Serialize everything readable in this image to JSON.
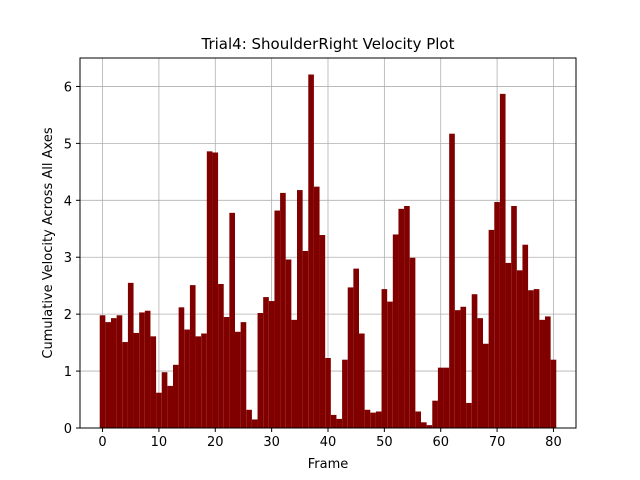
{
  "chart_data": {
    "type": "bar",
    "title": "Trial4: ShoulderRight Velocity Plot",
    "xlabel": "Frame",
    "ylabel": "Cumulative Velocity Across All Axes",
    "xlim": [
      -4.0,
      84.0
    ],
    "ylim": [
      0,
      6.5
    ],
    "xticks": [
      0,
      10,
      20,
      30,
      40,
      50,
      60,
      70,
      80
    ],
    "yticks": [
      0,
      1,
      2,
      3,
      4,
      5,
      6
    ],
    "grid": true,
    "bar_color": "#800000",
    "x": [
      0,
      1,
      2,
      3,
      4,
      5,
      6,
      7,
      8,
      9,
      10,
      11,
      12,
      13,
      14,
      15,
      16,
      17,
      18,
      19,
      20,
      21,
      22,
      23,
      24,
      25,
      26,
      27,
      28,
      29,
      30,
      31,
      32,
      33,
      34,
      35,
      36,
      37,
      38,
      39,
      40,
      41,
      42,
      43,
      44,
      45,
      46,
      47,
      48,
      49,
      50,
      51,
      52,
      53,
      54,
      55,
      56,
      57,
      58,
      59,
      60,
      61,
      62,
      63,
      64,
      65,
      66,
      67,
      68,
      69,
      70,
      71,
      72,
      73,
      74,
      75,
      76,
      77,
      78,
      79,
      80
    ],
    "values": [
      1.98,
      1.86,
      1.93,
      1.98,
      1.51,
      2.55,
      1.67,
      2.03,
      2.06,
      1.61,
      0.62,
      0.98,
      0.74,
      1.11,
      2.12,
      1.73,
      2.51,
      1.61,
      1.66,
      4.86,
      4.84,
      2.53,
      1.95,
      3.78,
      1.69,
      1.86,
      0.32,
      0.15,
      2.02,
      2.3,
      2.23,
      3.82,
      4.13,
      2.96,
      1.9,
      4.18,
      3.11,
      6.21,
      4.24,
      3.39,
      1.23,
      0.23,
      0.16,
      1.2,
      2.47,
      2.8,
      1.66,
      0.32,
      0.27,
      0.29,
      2.44,
      2.22,
      3.4,
      3.85,
      3.9,
      2.99,
      0.29,
      0.1,
      0.05,
      0.48,
      1.06,
      1.06,
      5.17,
      2.07,
      2.13,
      0.44,
      2.35,
      1.93,
      1.48,
      3.48,
      3.97,
      5.87,
      2.9,
      3.9,
      2.77,
      3.22,
      2.42,
      2.44,
      1.9,
      1.96,
      1.2
    ]
  }
}
